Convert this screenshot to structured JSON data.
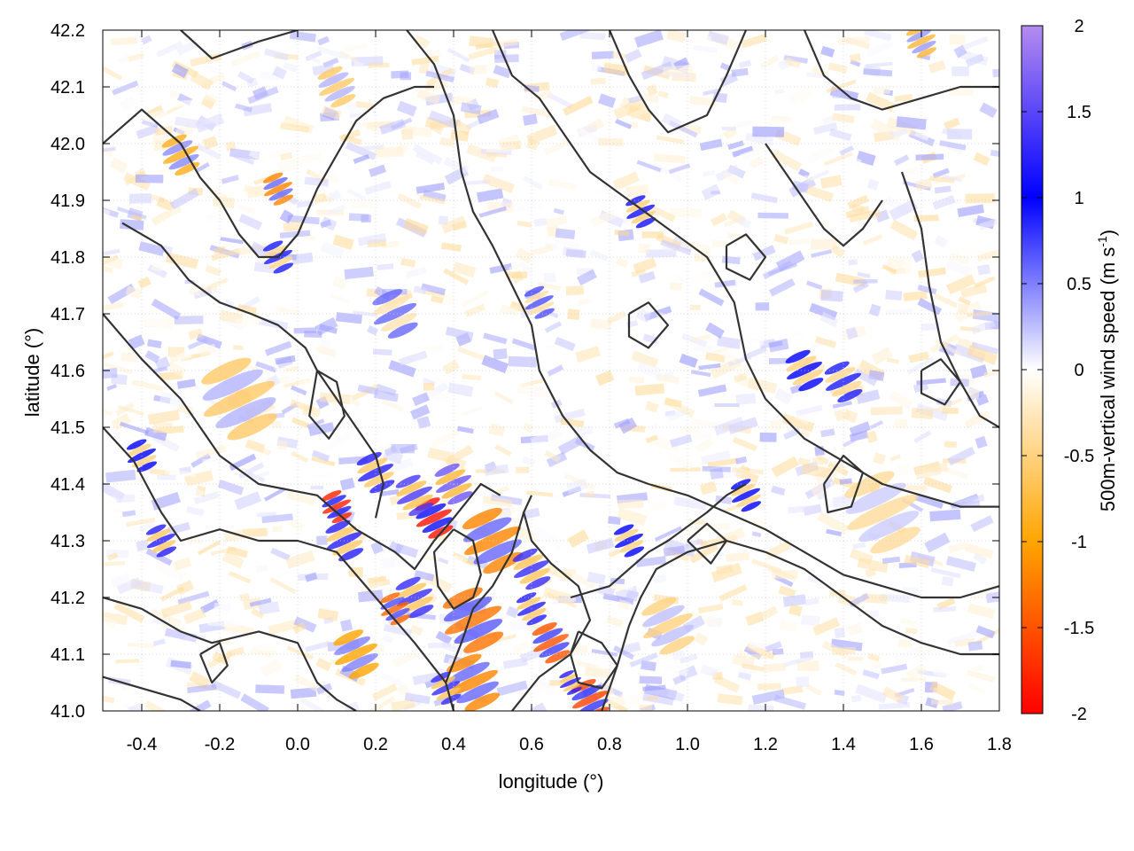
{
  "chart_data": {
    "type": "heatmap",
    "title": "",
    "xlabel": "longitude (°)",
    "ylabel": "latitude (°)",
    "xlim": [
      -0.5,
      1.8
    ],
    "ylim": [
      41.0,
      42.2
    ],
    "xticks": [
      -0.4,
      -0.2,
      0.0,
      0.2,
      0.4,
      0.6,
      0.8,
      1.0,
      1.2,
      1.4,
      1.6,
      1.8
    ],
    "xtick_labels": [
      "-0.4",
      "-0.2",
      "0.0",
      "0.2",
      "0.4",
      "0.6",
      "0.8",
      "1.0",
      "1.2",
      "1.4",
      "1.6",
      "1.8"
    ],
    "yticks": [
      41.0,
      41.1,
      41.2,
      41.3,
      41.4,
      41.5,
      41.6,
      41.7,
      41.8,
      41.9,
      42.0,
      42.1,
      42.2
    ],
    "ytick_labels": [
      "41.0",
      "41.1",
      "41.2",
      "41.3",
      "41.4",
      "41.5",
      "41.6",
      "41.7",
      "41.8",
      "41.9",
      "42.0",
      "42.1",
      "42.2"
    ],
    "grid": true,
    "colorbar": {
      "label_main": "500m-vertical wind speed (m s",
      "label_sup": "-1",
      "label_close": ")",
      "range": [
        -2,
        2
      ],
      "ticks": [
        2,
        1.5,
        1,
        0.5,
        0,
        -0.5,
        -1,
        -1.5,
        -2
      ],
      "tick_labels": [
        "2",
        "1.5",
        "1",
        "0.5",
        "0",
        "-0.5",
        "-1",
        "-1.5",
        "-2"
      ],
      "stops": [
        {
          "value": 2,
          "color": "#b48cf0"
        },
        {
          "value": 1,
          "color": "#0000ff"
        },
        {
          "value": 0,
          "color": "#ffffff"
        },
        {
          "value": -1,
          "color": "#ffa500"
        },
        {
          "value": -2,
          "color": "#ff0000"
        }
      ]
    },
    "contour_color": "#333333",
    "contours": [
      [
        [
          -0.5,
          41.7
        ],
        [
          -0.4,
          41.62
        ],
        [
          -0.3,
          41.55
        ],
        [
          -0.2,
          41.45
        ],
        [
          -0.1,
          41.4
        ],
        [
          0.05,
          41.38
        ],
        [
          0.15,
          41.32
        ],
        [
          0.25,
          41.28
        ],
        [
          0.3,
          41.25
        ],
        [
          0.35,
          41.3
        ],
        [
          0.4,
          41.34
        ],
        [
          0.47,
          41.4
        ],
        [
          0.52,
          41.38
        ]
      ],
      [
        [
          -0.5,
          41.5
        ],
        [
          -0.42,
          41.44
        ],
        [
          -0.35,
          41.35
        ],
        [
          -0.3,
          41.3
        ],
        [
          -0.2,
          41.32
        ],
        [
          -0.1,
          41.3
        ],
        [
          0.0,
          41.3
        ],
        [
          0.1,
          41.28
        ],
        [
          0.2,
          41.2
        ],
        [
          0.3,
          41.12
        ],
        [
          0.38,
          41.05
        ],
        [
          0.4,
          41.0
        ]
      ],
      [
        [
          -0.5,
          41.2
        ],
        [
          -0.4,
          41.18
        ],
        [
          -0.3,
          41.14
        ],
        [
          -0.22,
          41.12
        ],
        [
          -0.1,
          41.14
        ],
        [
          0.0,
          41.12
        ],
        [
          0.05,
          41.05
        ],
        [
          0.1,
          41.02
        ],
        [
          0.15,
          41.0
        ]
      ],
      [
        [
          -0.5,
          41.06
        ],
        [
          -0.4,
          41.04
        ],
        [
          -0.3,
          41.02
        ],
        [
          -0.25,
          41.0
        ]
      ],
      [
        [
          -0.5,
          42.0
        ],
        [
          -0.4,
          42.06
        ],
        [
          -0.3,
          42.0
        ],
        [
          -0.25,
          41.94
        ],
        [
          -0.2,
          41.9
        ],
        [
          -0.15,
          41.84
        ],
        [
          -0.1,
          41.8
        ],
        [
          -0.05,
          41.8
        ],
        [
          0.0,
          41.84
        ],
        [
          0.05,
          41.92
        ],
        [
          0.1,
          41.98
        ],
        [
          0.15,
          42.04
        ],
        [
          0.22,
          42.08
        ],
        [
          0.3,
          42.1
        ],
        [
          0.35,
          42.1
        ]
      ],
      [
        [
          -0.45,
          41.86
        ],
        [
          -0.35,
          41.82
        ],
        [
          -0.28,
          41.76
        ],
        [
          -0.2,
          41.72
        ],
        [
          -0.12,
          41.7
        ],
        [
          -0.05,
          41.68
        ],
        [
          0.02,
          41.64
        ],
        [
          0.05,
          41.6
        ],
        [
          0.1,
          41.55
        ],
        [
          0.15,
          41.5
        ],
        [
          0.2,
          41.45
        ],
        [
          0.22,
          41.4
        ],
        [
          0.2,
          41.34
        ]
      ],
      [
        [
          -0.3,
          42.2
        ],
        [
          -0.22,
          42.15
        ],
        [
          -0.1,
          42.18
        ],
        [
          0.0,
          42.2
        ]
      ],
      [
        [
          0.28,
          42.2
        ],
        [
          0.35,
          42.14
        ],
        [
          0.4,
          42.05
        ],
        [
          0.42,
          41.95
        ],
        [
          0.45,
          41.88
        ],
        [
          0.5,
          41.82
        ],
        [
          0.55,
          41.75
        ],
        [
          0.6,
          41.68
        ],
        [
          0.62,
          41.6
        ],
        [
          0.68,
          41.52
        ],
        [
          0.75,
          41.46
        ],
        [
          0.82,
          41.42
        ],
        [
          0.9,
          41.4
        ],
        [
          1.0,
          41.38
        ],
        [
          1.1,
          41.35
        ],
        [
          1.2,
          41.32
        ],
        [
          1.3,
          41.28
        ],
        [
          1.4,
          41.24
        ],
        [
          1.5,
          41.22
        ],
        [
          1.6,
          41.2
        ],
        [
          1.7,
          41.2
        ],
        [
          1.8,
          41.22
        ]
      ],
      [
        [
          0.5,
          42.2
        ],
        [
          0.55,
          42.12
        ],
        [
          0.62,
          42.08
        ],
        [
          0.7,
          42.0
        ],
        [
          0.75,
          41.95
        ],
        [
          0.85,
          41.9
        ],
        [
          0.95,
          41.85
        ],
        [
          1.05,
          41.8
        ],
        [
          1.12,
          41.72
        ],
        [
          1.15,
          41.62
        ],
        [
          1.2,
          41.55
        ],
        [
          1.3,
          41.48
        ],
        [
          1.4,
          41.44
        ],
        [
          1.5,
          41.4
        ],
        [
          1.6,
          41.38
        ],
        [
          1.7,
          41.36
        ],
        [
          1.8,
          41.36
        ]
      ],
      [
        [
          0.8,
          42.2
        ],
        [
          0.85,
          42.12
        ],
        [
          0.9,
          42.06
        ],
        [
          0.95,
          42.02
        ],
        [
          1.05,
          42.05
        ],
        [
          1.1,
          42.12
        ],
        [
          1.15,
          42.2
        ]
      ],
      [
        [
          1.3,
          42.2
        ],
        [
          1.35,
          42.12
        ],
        [
          1.42,
          42.08
        ],
        [
          1.5,
          42.06
        ],
        [
          1.6,
          42.08
        ],
        [
          1.7,
          42.1
        ],
        [
          1.8,
          42.1
        ]
      ],
      [
        [
          1.55,
          41.95
        ],
        [
          1.6,
          41.85
        ],
        [
          1.62,
          41.75
        ],
        [
          1.65,
          41.65
        ],
        [
          1.7,
          41.58
        ],
        [
          1.75,
          41.52
        ],
        [
          1.8,
          41.5
        ]
      ],
      [
        [
          0.7,
          41.2
        ],
        [
          0.8,
          41.22
        ],
        [
          0.9,
          41.28
        ],
        [
          0.95,
          41.3
        ],
        [
          1.05,
          41.35
        ],
        [
          1.1,
          41.38
        ],
        [
          1.15,
          41.4
        ]
      ],
      [
        [
          0.78,
          41.0
        ],
        [
          0.82,
          41.08
        ],
        [
          0.85,
          41.15
        ],
        [
          0.88,
          41.2
        ],
        [
          0.92,
          41.25
        ],
        [
          1.0,
          41.28
        ],
        [
          1.1,
          41.3
        ],
        [
          1.2,
          41.28
        ],
        [
          1.3,
          41.25
        ],
        [
          1.4,
          41.2
        ],
        [
          1.5,
          41.15
        ],
        [
          1.6,
          41.12
        ],
        [
          1.7,
          41.1
        ],
        [
          1.8,
          41.1
        ]
      ],
      [
        [
          0.55,
          41.0
        ],
        [
          0.62,
          41.06
        ],
        [
          0.7,
          41.1
        ],
        [
          0.75,
          41.16
        ],
        [
          0.72,
          41.22
        ],
        [
          0.65,
          41.26
        ],
        [
          0.6,
          41.3
        ],
        [
          0.58,
          41.35
        ],
        [
          0.6,
          41.38
        ]
      ],
      [
        [
          0.38,
          41.05
        ],
        [
          0.42,
          41.12
        ],
        [
          0.45,
          41.18
        ],
        [
          0.5,
          41.22
        ],
        [
          0.55,
          41.28
        ],
        [
          0.58,
          41.35
        ]
      ],
      [
        [
          0.4,
          41.32
        ],
        [
          0.45,
          41.3
        ],
        [
          0.47,
          41.24
        ],
        [
          0.45,
          41.2
        ],
        [
          0.4,
          41.18
        ],
        [
          0.36,
          41.22
        ],
        [
          0.35,
          41.28
        ],
        [
          0.4,
          41.32
        ]
      ],
      [
        [
          0.72,
          41.14
        ],
        [
          0.78,
          41.12
        ],
        [
          0.82,
          41.08
        ],
        [
          0.78,
          41.04
        ],
        [
          0.72,
          41.05
        ],
        [
          0.7,
          41.1
        ],
        [
          0.72,
          41.14
        ]
      ],
      [
        [
          1.0,
          41.3
        ],
        [
          1.05,
          41.33
        ],
        [
          1.1,
          41.3
        ],
        [
          1.06,
          41.26
        ],
        [
          1.0,
          41.3
        ]
      ],
      [
        [
          1.6,
          41.6
        ],
        [
          1.65,
          41.62
        ],
        [
          1.7,
          41.58
        ],
        [
          1.66,
          41.54
        ],
        [
          1.6,
          41.56
        ],
        [
          1.6,
          41.6
        ]
      ],
      [
        [
          1.1,
          41.82
        ],
        [
          1.15,
          41.84
        ],
        [
          1.2,
          41.8
        ],
        [
          1.16,
          41.76
        ],
        [
          1.1,
          41.78
        ],
        [
          1.1,
          41.82
        ]
      ],
      [
        [
          -0.25,
          41.1
        ],
        [
          -0.2,
          41.12
        ],
        [
          -0.18,
          41.08
        ],
        [
          -0.22,
          41.05
        ],
        [
          -0.25,
          41.1
        ]
      ],
      [
        [
          0.05,
          41.6
        ],
        [
          0.1,
          41.58
        ],
        [
          0.12,
          41.52
        ],
        [
          0.08,
          41.48
        ],
        [
          0.03,
          41.52
        ],
        [
          0.05,
          41.6
        ]
      ],
      [
        [
          0.85,
          41.7
        ],
        [
          0.9,
          41.72
        ],
        [
          0.95,
          41.68
        ],
        [
          0.9,
          41.64
        ],
        [
          0.85,
          41.66
        ],
        [
          0.85,
          41.7
        ]
      ],
      [
        [
          1.35,
          41.4
        ],
        [
          1.4,
          41.45
        ],
        [
          1.45,
          41.42
        ],
        [
          1.42,
          41.36
        ],
        [
          1.36,
          41.35
        ],
        [
          1.35,
          41.4
        ]
      ],
      [
        [
          1.2,
          42.0
        ],
        [
          1.25,
          41.95
        ],
        [
          1.3,
          41.9
        ],
        [
          1.35,
          41.85
        ],
        [
          1.4,
          41.82
        ],
        [
          1.45,
          41.85
        ],
        [
          1.5,
          41.9
        ]
      ]
    ],
    "features": [
      {
        "x": 0.1,
        "y": 41.36,
        "value": -1.8,
        "r": 0.04
      },
      {
        "x": 0.35,
        "y": 41.34,
        "value": -1.9,
        "r": 0.05
      },
      {
        "x": 0.4,
        "y": 41.4,
        "value": 1.6,
        "r": 0.05
      },
      {
        "x": 0.3,
        "y": 41.38,
        "value": 1.4,
        "r": 0.05
      },
      {
        "x": 0.5,
        "y": 41.3,
        "value": -1.2,
        "r": 0.08
      },
      {
        "x": 0.45,
        "y": 41.16,
        "value": -1.3,
        "r": 0.08
      },
      {
        "x": 0.3,
        "y": 41.2,
        "value": 1.3,
        "r": 0.05
      },
      {
        "x": 0.25,
        "y": 41.18,
        "value": -1.4,
        "r": 0.04
      },
      {
        "x": 0.45,
        "y": 41.05,
        "value": -1.2,
        "r": 0.07
      },
      {
        "x": 0.38,
        "y": 41.04,
        "value": 1.3,
        "r": 0.04
      },
      {
        "x": 0.6,
        "y": 41.25,
        "value": 1.3,
        "r": 0.05
      },
      {
        "x": 0.65,
        "y": 41.12,
        "value": -1.5,
        "r": 0.05
      },
      {
        "x": 0.75,
        "y": 41.02,
        "value": -1.6,
        "r": 0.05
      },
      {
        "x": 0.7,
        "y": 41.05,
        "value": 1.2,
        "r": 0.03
      },
      {
        "x": 0.6,
        "y": 41.18,
        "value": 1.2,
        "r": 0.04
      },
      {
        "x": -0.35,
        "y": 41.3,
        "value": 1.2,
        "r": 0.04
      },
      {
        "x": -0.4,
        "y": 41.45,
        "value": 1.0,
        "r": 0.04
      },
      {
        "x": 0.12,
        "y": 41.3,
        "value": 1.2,
        "r": 0.05
      },
      {
        "x": 0.2,
        "y": 41.42,
        "value": 1.2,
        "r": 0.05
      },
      {
        "x": -0.05,
        "y": 41.92,
        "value": -1.2,
        "r": 0.04
      },
      {
        "x": -0.05,
        "y": 41.8,
        "value": 0.9,
        "r": 0.04
      },
      {
        "x": -0.3,
        "y": 41.98,
        "value": -0.9,
        "r": 0.05
      },
      {
        "x": 0.88,
        "y": 41.88,
        "value": 1.1,
        "r": 0.04
      },
      {
        "x": 1.3,
        "y": 41.6,
        "value": 1.0,
        "r": 0.05
      },
      {
        "x": 1.4,
        "y": 41.58,
        "value": 0.9,
        "r": 0.05
      },
      {
        "x": 1.15,
        "y": 41.38,
        "value": 1.0,
        "r": 0.04
      },
      {
        "x": 0.15,
        "y": 41.1,
        "value": -1.0,
        "r": 0.06
      },
      {
        "x": -0.15,
        "y": 41.55,
        "value": -0.6,
        "r": 0.1
      },
      {
        "x": 0.25,
        "y": 41.7,
        "value": 0.6,
        "r": 0.06
      },
      {
        "x": 0.62,
        "y": 41.72,
        "value": 0.7,
        "r": 0.04
      },
      {
        "x": 1.6,
        "y": 42.18,
        "value": -0.8,
        "r": 0.04
      },
      {
        "x": 0.1,
        "y": 42.1,
        "value": -0.6,
        "r": 0.05
      },
      {
        "x": 0.85,
        "y": 41.3,
        "value": 1.0,
        "r": 0.04
      },
      {
        "x": 0.95,
        "y": 41.15,
        "value": -0.5,
        "r": 0.07
      },
      {
        "x": 1.5,
        "y": 41.35,
        "value": -0.4,
        "r": 0.1
      }
    ]
  }
}
